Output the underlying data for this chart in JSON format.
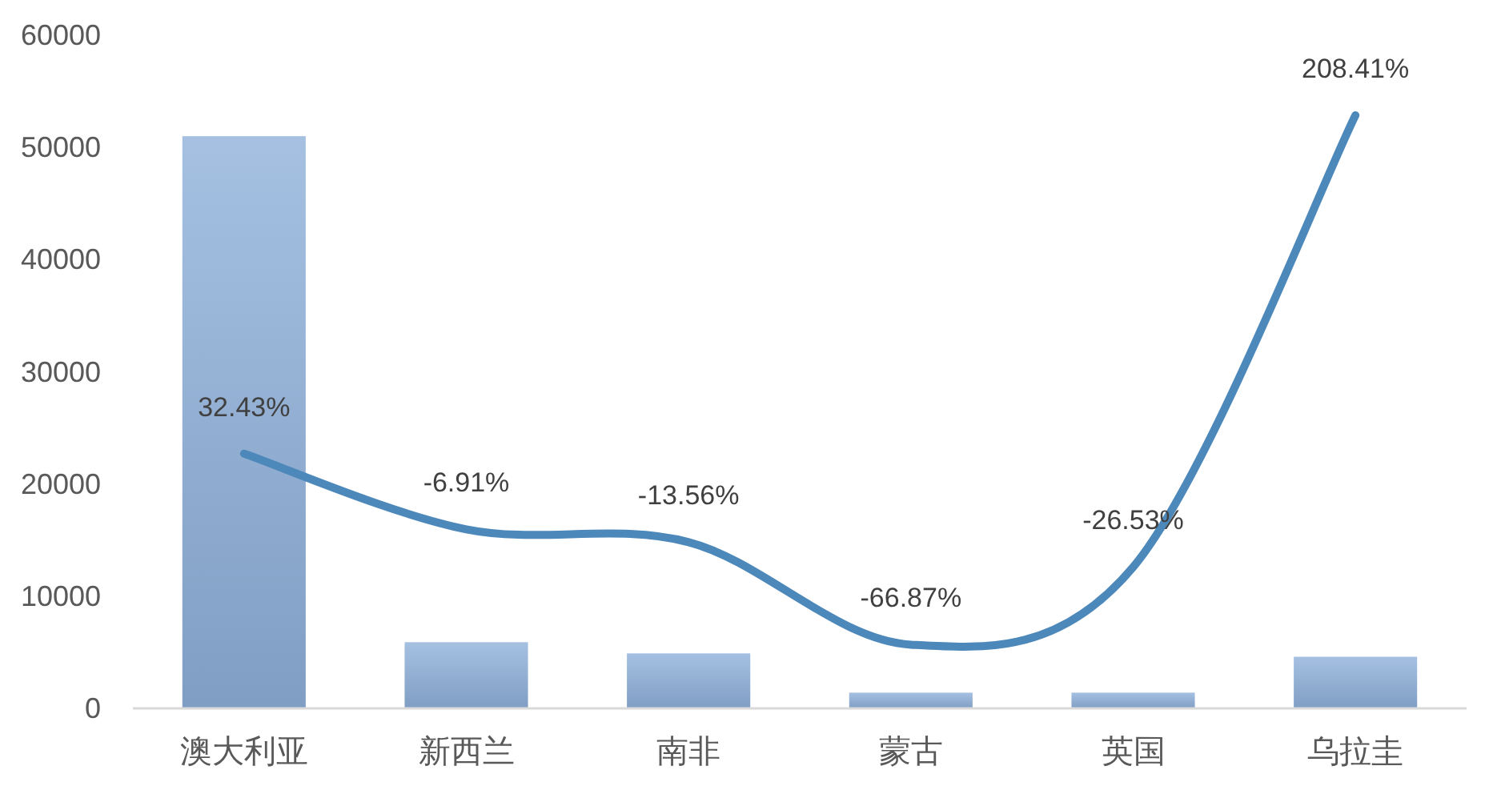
{
  "chart_data": {
    "type": "bar",
    "categories": [
      "澳大利亚",
      "新西兰",
      "南非",
      "蒙古",
      "英国",
      "乌拉圭"
    ],
    "series": [
      {
        "color": "#8eb0da",
        "values": [
          51000,
          5900,
          4900,
          1400,
          1400,
          4600
        ]
      },
      {
        "type": "line",
        "axis": "y2",
        "color": "#4d88bb",
        "values": [
          32.43,
          -6.91,
          -13.56,
          -66.87,
          -26.53,
          208.41
        ],
        "value_labels": [
          "32.43%",
          "-6.91%",
          "-13.56%",
          "-66.87%",
          "-26.53%",
          "208.41%"
        ]
      }
    ],
    "ylim": [
      0,
      60000
    ],
    "yticks": [
      0,
      10000,
      20000,
      30000,
      40000,
      50000,
      60000
    ]
  }
}
